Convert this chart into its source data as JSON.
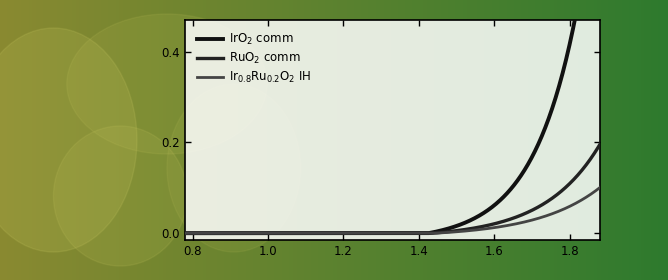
{
  "xlim": [
    0.78,
    1.88
  ],
  "ylim": [
    -0.015,
    0.47
  ],
  "xticks": [
    0.8,
    1.0,
    1.2,
    1.4,
    1.6,
    1.8
  ],
  "yticks": [
    0.0,
    0.2,
    0.4
  ],
  "ytick_labels": [
    "0.0",
    "0.2",
    "0.4"
  ],
  "legend": [
    {
      "label": "IrO$_2$ comm",
      "color": "#111111",
      "lw": 2.8
    },
    {
      "label": "RuO$_2$ comm",
      "color": "#222222",
      "lw": 2.4
    },
    {
      "label": "Ir$_{0.8}$Ru$_{0.2}$O$_2$ IH",
      "color": "#444444",
      "lw": 2.0
    }
  ],
  "line1_color": "#111111",
  "line2_color": "#222222",
  "line3_color": "#444444",
  "line1_lw": 2.8,
  "line2_lw": 2.4,
  "line3_lw": 2.0,
  "fig_width": 6.68,
  "fig_height": 2.8,
  "dpi": 100
}
